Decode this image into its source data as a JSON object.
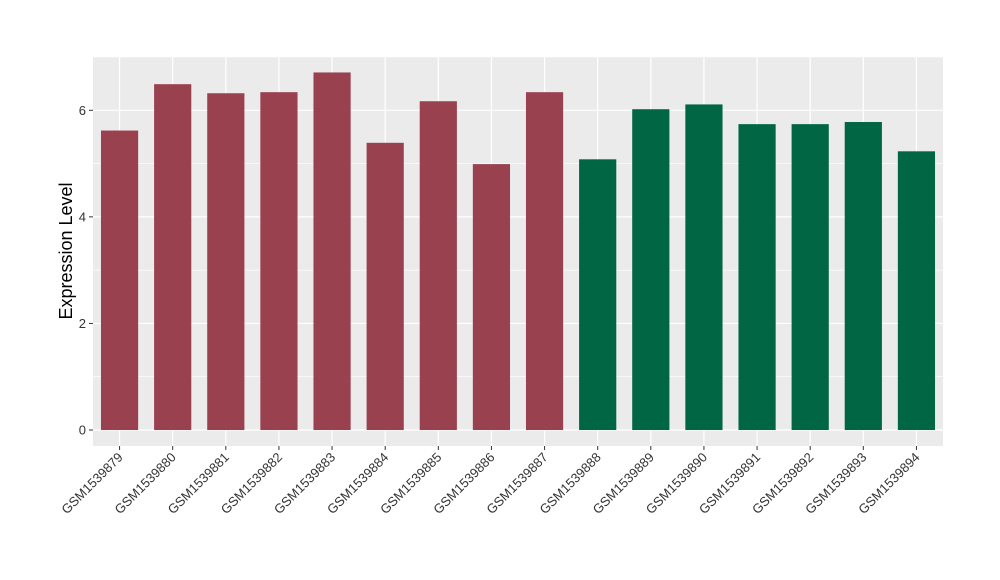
{
  "chart_data": {
    "type": "bar",
    "title": "",
    "xlabel": "",
    "ylabel": "Expression Level",
    "categories": [
      "GSM1539879",
      "GSM1539880",
      "GSM1539881",
      "GSM1539882",
      "GSM1539883",
      "GSM1539884",
      "GSM1539885",
      "GSM1539886",
      "GSM1539887",
      "GSM1539888",
      "GSM1539889",
      "GSM1539890",
      "GSM1539891",
      "GSM1539892",
      "GSM1539893",
      "GSM1539894"
    ],
    "values": [
      5.62,
      6.49,
      6.32,
      6.34,
      6.71,
      5.39,
      6.17,
      4.99,
      6.34,
      5.08,
      6.02,
      6.11,
      5.74,
      5.74,
      5.78,
      5.23
    ],
    "bar_colors": [
      "#9a4150",
      "#9a4150",
      "#9a4150",
      "#9a4150",
      "#9a4150",
      "#9a4150",
      "#9a4150",
      "#9a4150",
      "#9a4150",
      "#006644",
      "#006644",
      "#006644",
      "#006644",
      "#006644",
      "#006644",
      "#006644"
    ],
    "ylim": [
      -0.3,
      7.0
    ],
    "yticks": [
      0,
      2,
      4,
      6
    ],
    "ytick_labels": [
      "0",
      "2",
      "4",
      "6"
    ],
    "grid": true,
    "legend": "none",
    "panel_background": "#ebebeb",
    "grid_color": "#ffffff"
  }
}
